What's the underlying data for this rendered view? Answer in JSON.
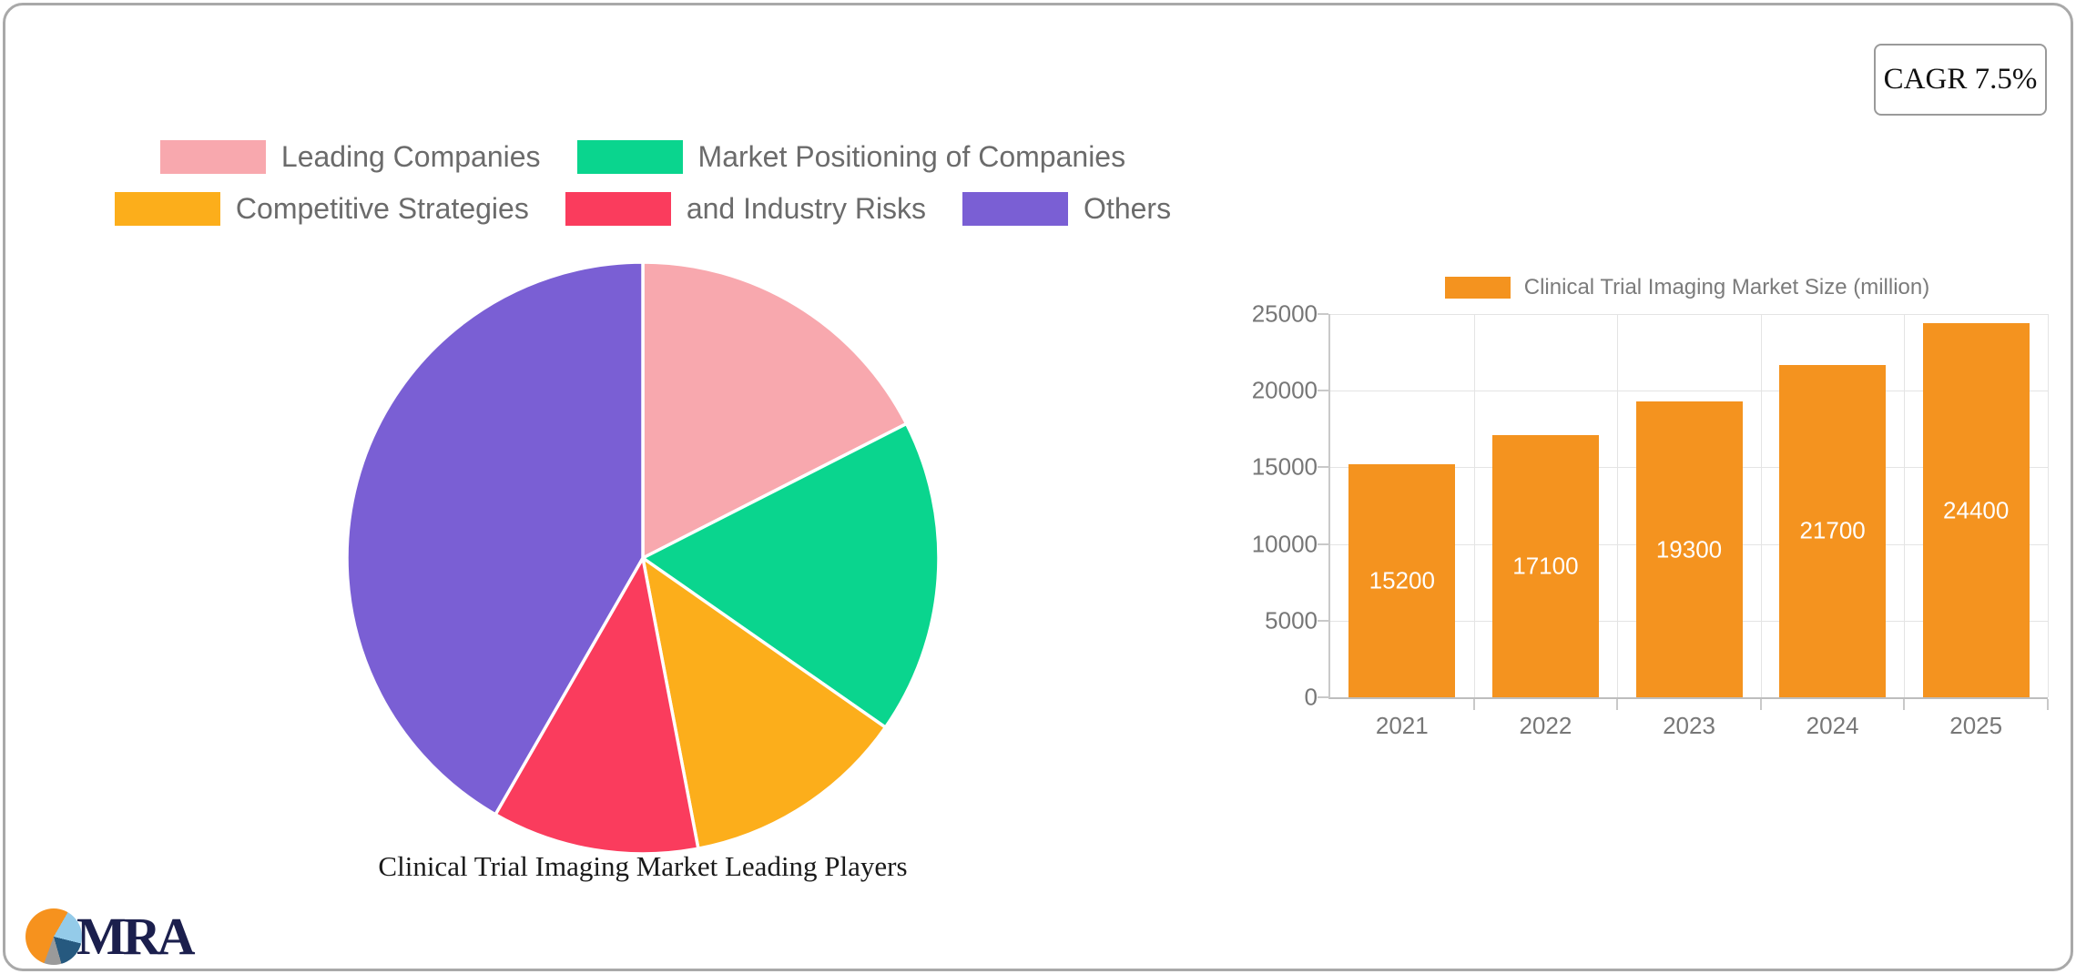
{
  "badge": {
    "label": "CAGR 7.5%"
  },
  "logo": {
    "text": "MRA"
  },
  "chart_data": [
    {
      "type": "pie",
      "title": "Clinical Trial Imaging Market Leading Players",
      "labels": [
        "Leading Companies",
        "Market Positioning of Companies",
        "Competitive Strategies",
        "and Industry Risks",
        "Others"
      ],
      "values": [
        17.5,
        17.2,
        12.3,
        11.3,
        41.7
      ],
      "colors": [
        "#F8A8AE",
        "#0AD58E",
        "#FCAE1B",
        "#FA3C5D",
        "#7A5FD4"
      ],
      "legend_position": "top",
      "start_angle_deg": 0,
      "slice_border_color": "#FFFFFF"
    },
    {
      "type": "bar",
      "legend": "Clinical Trial Imaging Market Size (million)",
      "categories": [
        "2021",
        "2022",
        "2023",
        "2024",
        "2025"
      ],
      "values": [
        15200,
        17100,
        19300,
        21700,
        24400
      ],
      "bar_color": "#F4931F",
      "value_label_color": "#FFFFFF",
      "ylim": [
        0,
        25000
      ],
      "yticks": [
        0,
        5000,
        10000,
        15000,
        20000,
        25000
      ],
      "grid": true,
      "legend_position": "top"
    }
  ]
}
